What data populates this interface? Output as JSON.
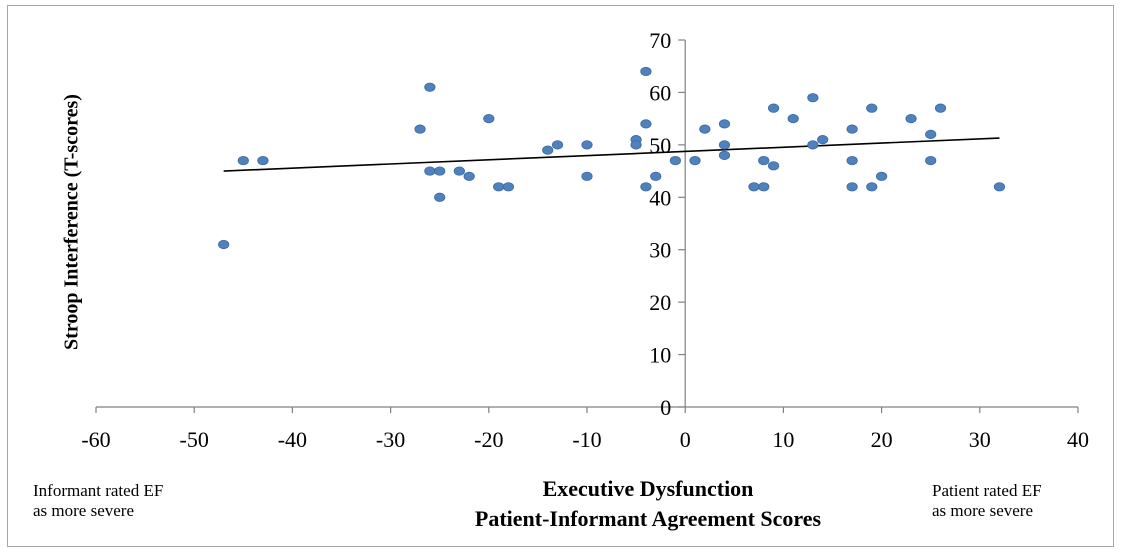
{
  "chart_data": {
    "type": "scatter",
    "title": "",
    "ylabel": "Stroop Interference (T-scores)",
    "xlabel_lines": [
      "Executive Dysfunction",
      "Patient-Informant Agreement Scores"
    ],
    "xlim": [
      -60,
      40
    ],
    "ylim": [
      0,
      70
    ],
    "xticks": [
      -60,
      -50,
      -40,
      -30,
      -20,
      -10,
      0,
      10,
      20,
      30,
      40
    ],
    "yticks": [
      0,
      10,
      20,
      30,
      40,
      50,
      60,
      70
    ],
    "grid": false,
    "annotations": {
      "left": [
        "Informant rated EF",
        "as more severe"
      ],
      "right": [
        "Patient rated EF",
        "as more severe"
      ]
    },
    "series": [
      {
        "marker_color": "#4f81bd",
        "points": [
          [
            -47,
            31
          ],
          [
            -45,
            47
          ],
          [
            -43,
            47
          ],
          [
            -27,
            53
          ],
          [
            -26,
            61
          ],
          [
            -26,
            45
          ],
          [
            -25,
            45
          ],
          [
            -25,
            40
          ],
          [
            -23,
            45
          ],
          [
            -22,
            44
          ],
          [
            -20,
            55
          ],
          [
            -19,
            42
          ],
          [
            -18,
            42
          ],
          [
            -14,
            49
          ],
          [
            -13,
            50
          ],
          [
            -10,
            50
          ],
          [
            -10,
            44
          ],
          [
            -5,
            51
          ],
          [
            -5,
            50
          ],
          [
            -4,
            64
          ],
          [
            -4,
            54
          ],
          [
            -4,
            42
          ],
          [
            -3,
            44
          ],
          [
            -1,
            47
          ],
          [
            1,
            47
          ],
          [
            2,
            53
          ],
          [
            4,
            54
          ],
          [
            4,
            50
          ],
          [
            4,
            48
          ],
          [
            7,
            42
          ],
          [
            8,
            47
          ],
          [
            8,
            42
          ],
          [
            9,
            57
          ],
          [
            9,
            46
          ],
          [
            11,
            55
          ],
          [
            13,
            59
          ],
          [
            13,
            50
          ],
          [
            14,
            51
          ],
          [
            17,
            53
          ],
          [
            17,
            47
          ],
          [
            17,
            42
          ],
          [
            19,
            57
          ],
          [
            19,
            42
          ],
          [
            20,
            44
          ],
          [
            23,
            55
          ],
          [
            25,
            52
          ],
          [
            25,
            47
          ],
          [
            26,
            57
          ],
          [
            32,
            42
          ]
        ]
      }
    ],
    "trendline": {
      "x": [
        -47,
        32
      ],
      "y": [
        45,
        51.3
      ],
      "color": "#000000"
    }
  }
}
